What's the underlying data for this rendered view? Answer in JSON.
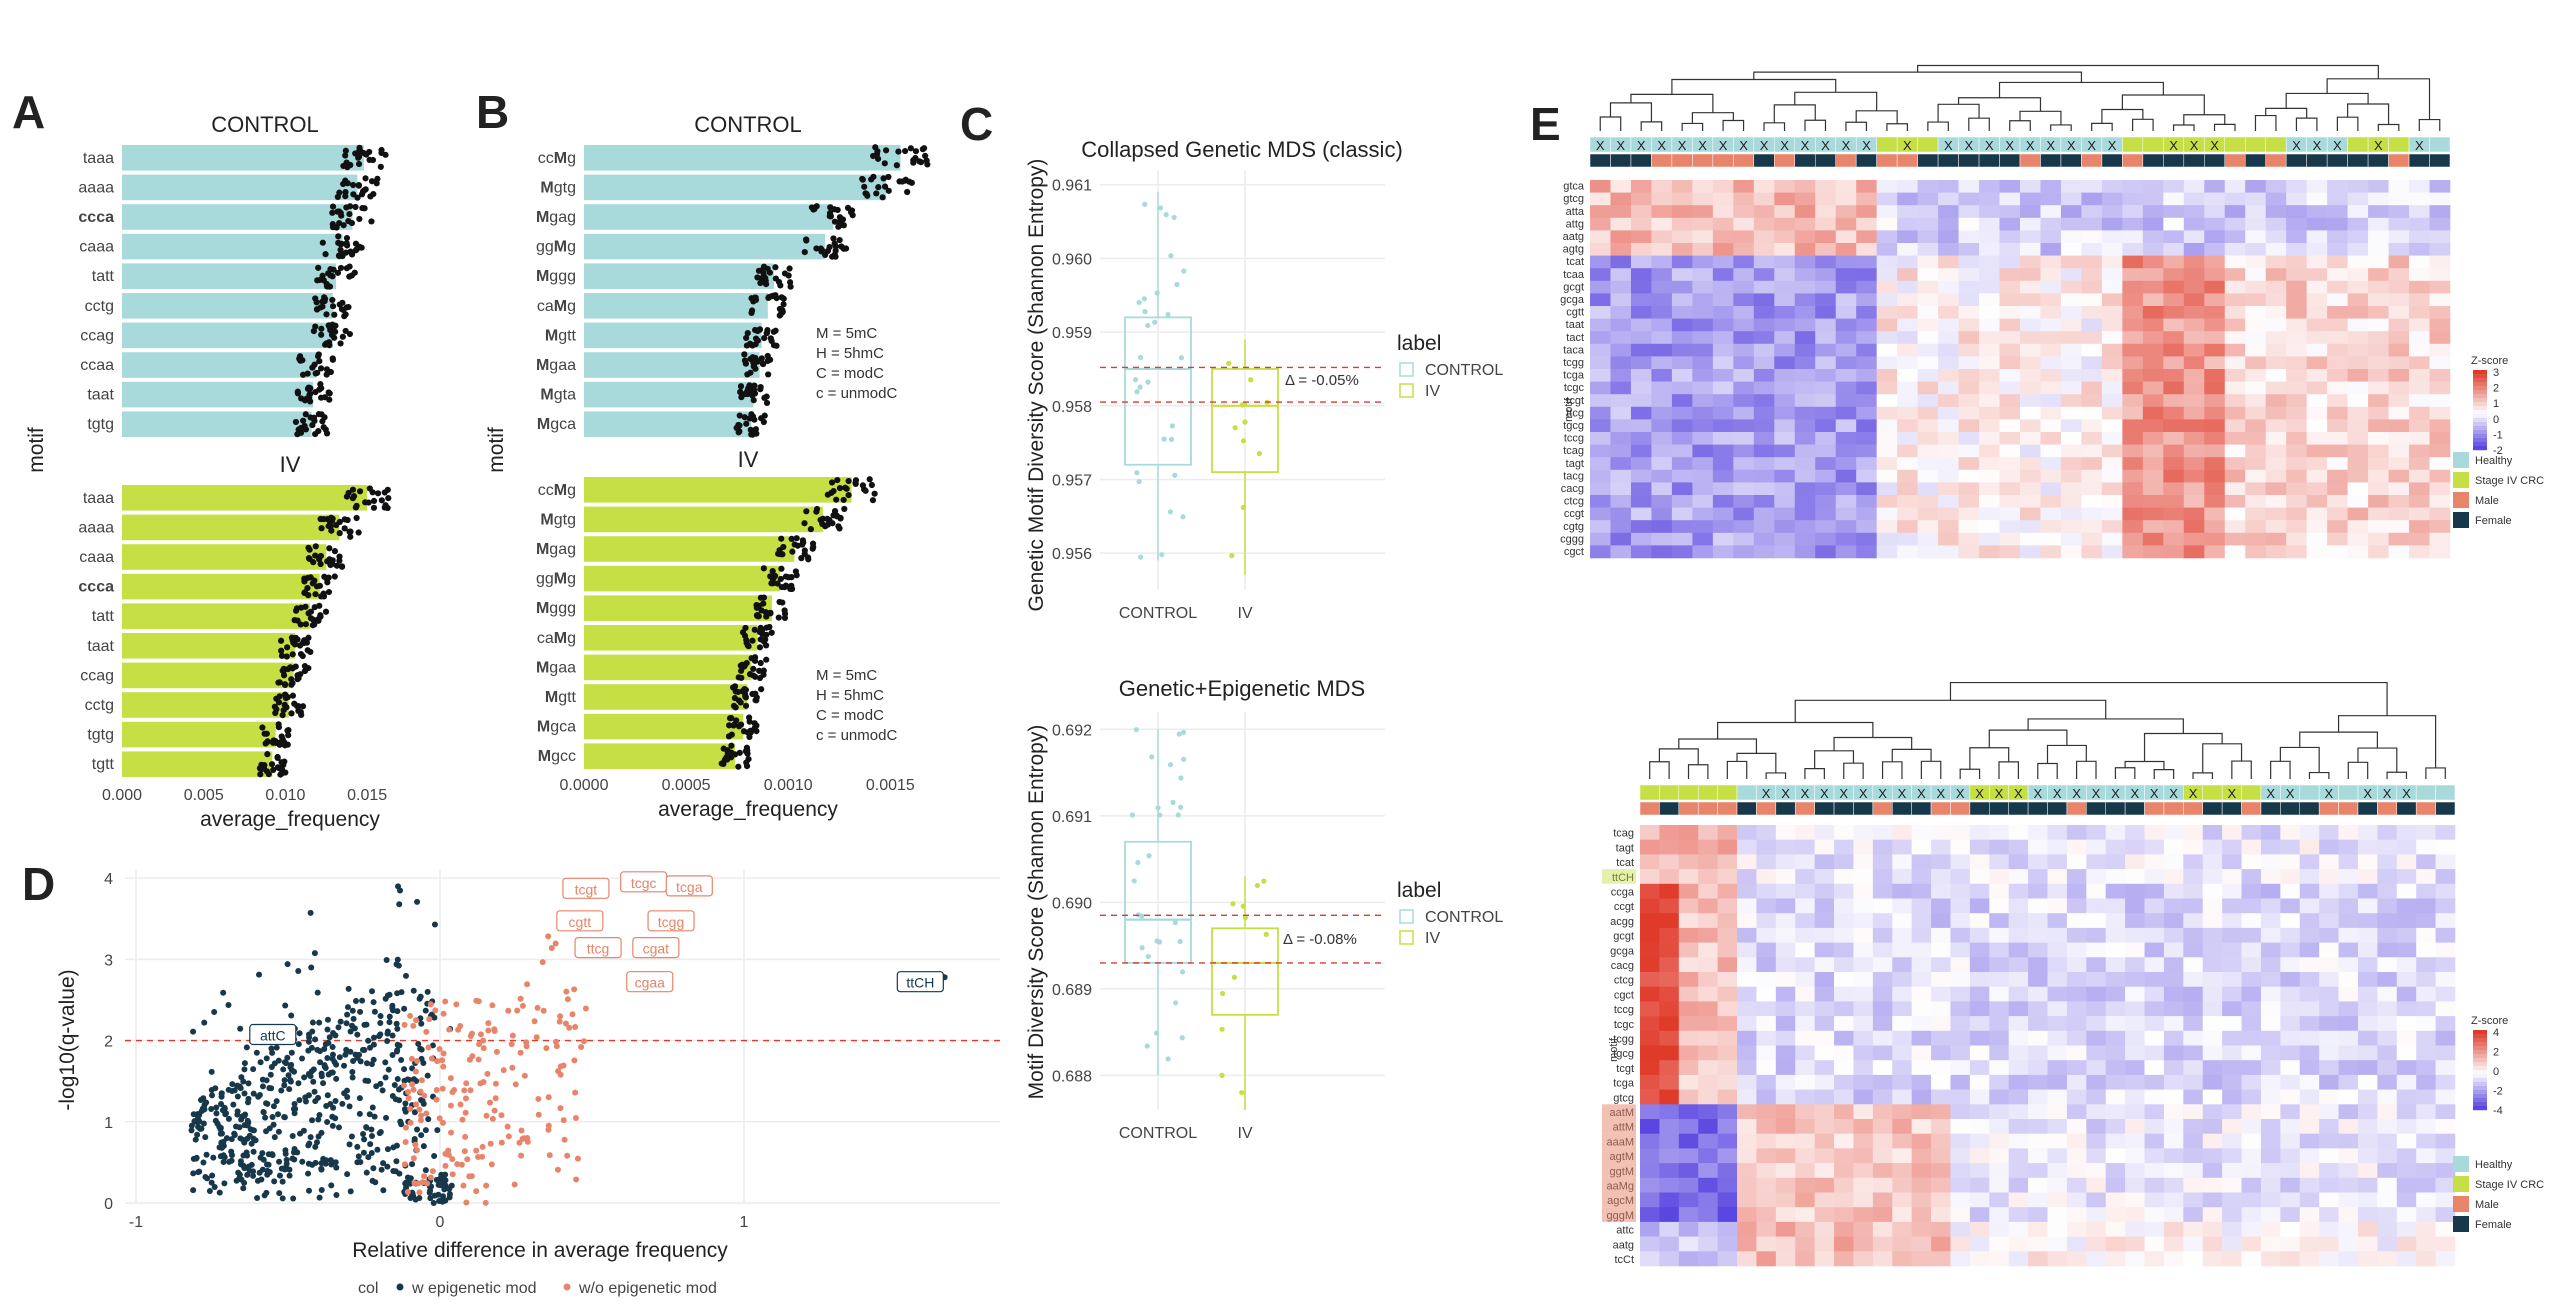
{
  "panel_labels": [
    "A",
    "B",
    "C",
    "D",
    "E"
  ],
  "colors": {
    "control": "#a8dadc",
    "iv": "#c5df45",
    "w_mod": "#17384a",
    "wo_mod": "#e8846a",
    "threshold": "#e03a2a",
    "heat_low": "#5a46e0",
    "heat_high": "#e03a2a"
  },
  "panelA": {
    "ylabel": "motif",
    "xlabel": "average_frequency",
    "xticks": [
      "0.000",
      "0.005",
      "0.010",
      "0.015"
    ],
    "control": {
      "title": "CONTROL",
      "motifs": [
        "taaa",
        "aaaa",
        "ccca",
        "caaa",
        "tatt",
        "cctg",
        "ccag",
        "ccaa",
        "taat",
        "tgtg"
      ],
      "bold": [
        "ccca"
      ],
      "values": [
        0.0148,
        0.0144,
        0.0141,
        0.0135,
        0.0131,
        0.0129,
        0.0129,
        0.0119,
        0.0117,
        0.0116
      ]
    },
    "iv": {
      "title": "IV",
      "motifs": [
        "taaa",
        "aaaa",
        "caaa",
        "ccca",
        "tatt",
        "taat",
        "ccag",
        "cctg",
        "tgtg",
        "tgtt"
      ],
      "bold": [
        "ccca"
      ],
      "values": [
        0.015,
        0.0133,
        0.0125,
        0.0121,
        0.0115,
        0.0106,
        0.0105,
        0.0102,
        0.0094,
        0.0092
      ]
    }
  },
  "panelB": {
    "xlabel": "average_frequency",
    "xticks": [
      "0.0000",
      "0.0005",
      "0.0010",
      "0.0015"
    ],
    "control": {
      "title": "CONTROL",
      "motifs": [
        "ccMg",
        "Mgtg",
        "Mgag",
        "ggMg",
        "Mggg",
        "caMg",
        "Mgtt",
        "Mgaa",
        "Mgta",
        "Mgca"
      ],
      "values": [
        0.00155,
        0.00148,
        0.00122,
        0.00118,
        0.00093,
        0.0009,
        0.00087,
        0.00086,
        0.00083,
        0.00082
      ]
    },
    "iv": {
      "title": "IV",
      "motifs": [
        "ccMg",
        "Mgtg",
        "Mgag",
        "ggMg",
        "Mggg",
        "caMg",
        "Mgaa",
        "Mgtt",
        "Mgca",
        "Mgcc"
      ],
      "values": [
        0.00131,
        0.00117,
        0.00103,
        0.00096,
        0.00092,
        0.00085,
        0.00082,
        0.0008,
        0.00078,
        0.00074
      ]
    },
    "legend": [
      "M = 5mC",
      "H = 5hmC",
      "C = modC",
      "c = unmodC"
    ]
  },
  "panelC": {
    "legend_title": "label",
    "legend_items": [
      "CONTROL",
      "IV"
    ],
    "top": {
      "title": "Collapsed Genetic MDS (classic)",
      "ylabel": "Genetic Motif Diversity Score (Shannon Entropy)",
      "yticks": [
        "0.956",
        "0.957",
        "0.958",
        "0.959",
        "0.960",
        "0.961"
      ],
      "delta": "Δ = -0.05%",
      "categories": [
        "CONTROL",
        "IV"
      ]
    },
    "bottom": {
      "title": "Genetic+Epigenetic MDS",
      "ylabel": "Motif Diversity Score (Shannon Entropy)",
      "yticks": [
        "0.688",
        "0.689",
        "0.690",
        "0.691",
        "0.692"
      ],
      "delta": "Δ = -0.08%",
      "categories": [
        "CONTROL",
        "IV"
      ]
    }
  },
  "panelD": {
    "xlabel": "Relative difference in average frequency",
    "ylabel": "-log10(q-value)",
    "xticks": [
      "-1",
      "0",
      "1"
    ],
    "yticks": [
      "0",
      "1",
      "2",
      "3",
      "4"
    ],
    "legend_title": "col",
    "legend_items": [
      "w epigenetic mod",
      "w/o epigenetic mod"
    ],
    "labels": [
      "tcgc",
      "tcga",
      "tcgt",
      "cgtt",
      "tcgg",
      "ttcg",
      "cgat",
      "cgaa",
      "ttCH",
      "attC"
    ]
  },
  "panelE": {
    "ylabel": "motif",
    "top": {
      "rows": [
        "gtca",
        "gtcg",
        "atta",
        "attg",
        "aatg",
        "agtg",
        "tcat",
        "tcaa",
        "gcgt",
        "gcga",
        "cgtt",
        "taat",
        "tact",
        "taca",
        "tcgg",
        "tcga",
        "tcgc",
        "tcgt",
        "ttcg",
        "tgcg",
        "tccg",
        "tcag",
        "tagt",
        "tacg",
        "cacg",
        "ctcg",
        "ccgt",
        "cgtg",
        "cggg",
        "cgct"
      ],
      "zlabel": "Z-score",
      "zticks": [
        "3",
        "2",
        "1",
        "0",
        "-1",
        "-2"
      ]
    },
    "bottom": {
      "rows": [
        "tcag",
        "tagt",
        "tcat",
        "ttCH",
        "ccga",
        "ccgt",
        "acgg",
        "gcgt",
        "gcga",
        "cacg",
        "ctcg",
        "cgct",
        "tccg",
        "tcgc",
        "tcgg",
        "tgcg",
        "tcgt",
        "tcga",
        "gtcg",
        "aatM",
        "attM",
        "aaaM",
        "agtM",
        "ggtM",
        "aaMg",
        "agcM",
        "gggM",
        "attc",
        "aatg",
        "tcCt"
      ],
      "highlight_green": [
        "ttCH"
      ],
      "highlight_red": [
        "aatM",
        "attM",
        "aaaM",
        "agtM",
        "ggtM",
        "aaMg",
        "agcM",
        "gggM"
      ],
      "zlabel": "Z-score",
      "zticks": [
        "4",
        "2",
        "0",
        "-2",
        "-4"
      ]
    },
    "annotation_legend": [
      "Healthy",
      "Stage IV CRC",
      "Male",
      "Female"
    ],
    "mark": "X"
  }
}
